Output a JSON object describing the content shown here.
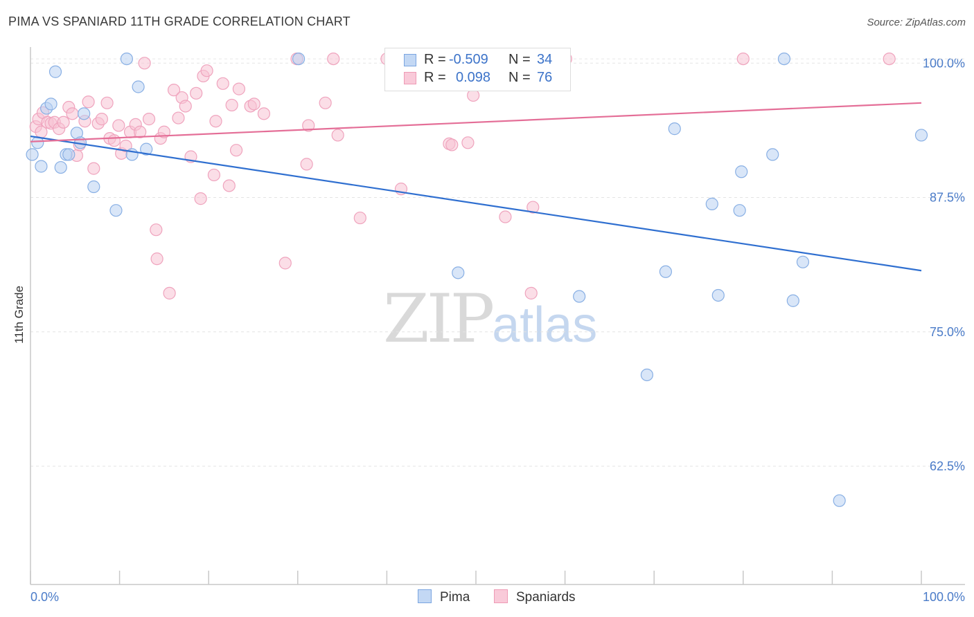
{
  "title": "PIMA VS SPANIARD 11TH GRADE CORRELATION CHART",
  "source": "Source: ZipAtlas.com",
  "watermark": {
    "zip": "ZIP",
    "atlas": "atlas"
  },
  "colors": {
    "pima": "#4a86d8",
    "pima_fill": "#b9d2f2",
    "spaniards": "#e8739a",
    "spaniards_fill": "#f7c2d3",
    "tick_text": "#4a7bc8"
  },
  "legend": {
    "pima": {
      "r_label": "R =",
      "r_value": "-0.509",
      "n_label": "N =",
      "n_value": "34"
    },
    "spaniards": {
      "r_label": "R =",
      "r_value": "0.098",
      "n_label": "N =",
      "n_value": "76"
    }
  },
  "bottom_legend": {
    "pima": "Pima",
    "spaniards": "Spaniards"
  },
  "chart_data": {
    "type": "scatter",
    "title": "PIMA VS SPANIARD 11TH GRADE CORRELATION CHART",
    "xlabel": "",
    "ylabel": "11th Grade",
    "xlim": [
      0,
      100
    ],
    "ylim": [
      51.5,
      101.5
    ],
    "x_tick_labels": [
      "0.0%",
      "100.0%"
    ],
    "y_ticks": [
      100.0,
      87.5,
      75.0,
      62.5
    ],
    "y_tick_labels": [
      "100.0%",
      "87.5%",
      "75.0%",
      "62.5%"
    ],
    "grid": true,
    "legend_position": "top-center",
    "series": [
      {
        "name": "Pima",
        "color": "#4a86d8",
        "trend": {
          "x": [
            0,
            100
          ],
          "y": [
            93.2,
            80.7
          ]
        },
        "points": [
          {
            "x": 0.2,
            "y": 91.5
          },
          {
            "x": 0.8,
            "y": 92.6
          },
          {
            "x": 1.2,
            "y": 90.4
          },
          {
            "x": 1.8,
            "y": 95.8
          },
          {
            "x": 2.3,
            "y": 96.2
          },
          {
            "x": 2.8,
            "y": 99.2
          },
          {
            "x": 3.4,
            "y": 90.3
          },
          {
            "x": 4.0,
            "y": 91.5
          },
          {
            "x": 4.3,
            "y": 91.5
          },
          {
            "x": 5.2,
            "y": 93.5
          },
          {
            "x": 5.6,
            "y": 92.6
          },
          {
            "x": 6.0,
            "y": 95.3
          },
          {
            "x": 7.1,
            "y": 88.5
          },
          {
            "x": 9.6,
            "y": 86.3
          },
          {
            "x": 10.8,
            "y": 100.4
          },
          {
            "x": 12.1,
            "y": 97.8
          },
          {
            "x": 11.4,
            "y": 91.5
          },
          {
            "x": 13.0,
            "y": 92.0
          },
          {
            "x": 30.1,
            "y": 100.4
          },
          {
            "x": 48.0,
            "y": 80.5
          },
          {
            "x": 61.6,
            "y": 78.3
          },
          {
            "x": 69.2,
            "y": 71.0
          },
          {
            "x": 71.3,
            "y": 80.6
          },
          {
            "x": 72.3,
            "y": 93.9
          },
          {
            "x": 76.5,
            "y": 86.9
          },
          {
            "x": 77.2,
            "y": 78.4
          },
          {
            "x": 79.6,
            "y": 86.3
          },
          {
            "x": 79.8,
            "y": 89.9
          },
          {
            "x": 83.3,
            "y": 91.5
          },
          {
            "x": 84.6,
            "y": 100.4
          },
          {
            "x": 85.6,
            "y": 77.9
          },
          {
            "x": 86.7,
            "y": 81.5
          },
          {
            "x": 90.8,
            "y": 59.3
          },
          {
            "x": 100.0,
            "y": 93.3
          }
        ]
      },
      {
        "name": "Spaniards",
        "color": "#e8739a",
        "trend": {
          "x": [
            0,
            100
          ],
          "y": [
            92.7,
            96.3
          ]
        },
        "points": [
          {
            "x": 0.6,
            "y": 94.1
          },
          {
            "x": 0.9,
            "y": 94.8
          },
          {
            "x": 1.2,
            "y": 93.6
          },
          {
            "x": 1.4,
            "y": 95.4
          },
          {
            "x": 1.9,
            "y": 94.5
          },
          {
            "x": 2.3,
            "y": 94.4
          },
          {
            "x": 2.7,
            "y": 94.5
          },
          {
            "x": 3.2,
            "y": 93.9
          },
          {
            "x": 3.7,
            "y": 94.5
          },
          {
            "x": 4.3,
            "y": 95.9
          },
          {
            "x": 4.7,
            "y": 95.3
          },
          {
            "x": 5.2,
            "y": 91.4
          },
          {
            "x": 5.5,
            "y": 92.4
          },
          {
            "x": 6.1,
            "y": 94.6
          },
          {
            "x": 6.5,
            "y": 96.4
          },
          {
            "x": 7.1,
            "y": 90.2
          },
          {
            "x": 7.6,
            "y": 94.4
          },
          {
            "x": 8.0,
            "y": 94.8
          },
          {
            "x": 8.6,
            "y": 96.3
          },
          {
            "x": 8.9,
            "y": 93.0
          },
          {
            "x": 9.4,
            "y": 92.8
          },
          {
            "x": 9.9,
            "y": 94.2
          },
          {
            "x": 10.2,
            "y": 91.6
          },
          {
            "x": 10.7,
            "y": 92.3
          },
          {
            "x": 11.2,
            "y": 93.6
          },
          {
            "x": 11.8,
            "y": 94.3
          },
          {
            "x": 12.3,
            "y": 93.6
          },
          {
            "x": 12.8,
            "y": 100.0
          },
          {
            "x": 13.3,
            "y": 94.8
          },
          {
            "x": 14.1,
            "y": 84.5
          },
          {
            "x": 14.6,
            "y": 93.0
          },
          {
            "x": 15.0,
            "y": 93.6
          },
          {
            "x": 15.6,
            "y": 78.6
          },
          {
            "x": 16.1,
            "y": 97.5
          },
          {
            "x": 16.6,
            "y": 94.9
          },
          {
            "x": 17.0,
            "y": 96.8
          },
          {
            "x": 17.4,
            "y": 96.0
          },
          {
            "x": 18.0,
            "y": 91.3
          },
          {
            "x": 18.6,
            "y": 97.2
          },
          {
            "x": 19.1,
            "y": 87.4
          },
          {
            "x": 19.4,
            "y": 98.8
          },
          {
            "x": 19.8,
            "y": 99.3
          },
          {
            "x": 20.6,
            "y": 89.6
          },
          {
            "x": 20.8,
            "y": 94.6
          },
          {
            "x": 21.6,
            "y": 98.1
          },
          {
            "x": 22.3,
            "y": 88.6
          },
          {
            "x": 22.6,
            "y": 96.1
          },
          {
            "x": 23.1,
            "y": 91.9
          },
          {
            "x": 23.4,
            "y": 97.6
          },
          {
            "x": 24.7,
            "y": 96.0
          },
          {
            "x": 25.1,
            "y": 96.2
          },
          {
            "x": 26.2,
            "y": 95.3
          },
          {
            "x": 28.6,
            "y": 81.4
          },
          {
            "x": 29.9,
            "y": 100.4
          },
          {
            "x": 31.0,
            "y": 90.6
          },
          {
            "x": 31.2,
            "y": 94.2
          },
          {
            "x": 33.1,
            "y": 96.3
          },
          {
            "x": 34.5,
            "y": 93.3
          },
          {
            "x": 37.0,
            "y": 85.6
          },
          {
            "x": 41.6,
            "y": 88.3
          },
          {
            "x": 42.1,
            "y": 100.4
          },
          {
            "x": 44.8,
            "y": 100.4
          },
          {
            "x": 47.0,
            "y": 92.5
          },
          {
            "x": 47.3,
            "y": 92.4
          },
          {
            "x": 49.1,
            "y": 92.6
          },
          {
            "x": 49.7,
            "y": 97.0
          },
          {
            "x": 52.3,
            "y": 100.4
          },
          {
            "x": 53.3,
            "y": 85.7
          },
          {
            "x": 56.2,
            "y": 78.6
          },
          {
            "x": 56.4,
            "y": 86.6
          },
          {
            "x": 60.1,
            "y": 100.4
          },
          {
            "x": 80.0,
            "y": 100.4
          },
          {
            "x": 96.4,
            "y": 100.4
          },
          {
            "x": 14.2,
            "y": 81.8
          },
          {
            "x": 34.0,
            "y": 100.4
          },
          {
            "x": 40.0,
            "y": 100.4
          }
        ]
      }
    ]
  }
}
